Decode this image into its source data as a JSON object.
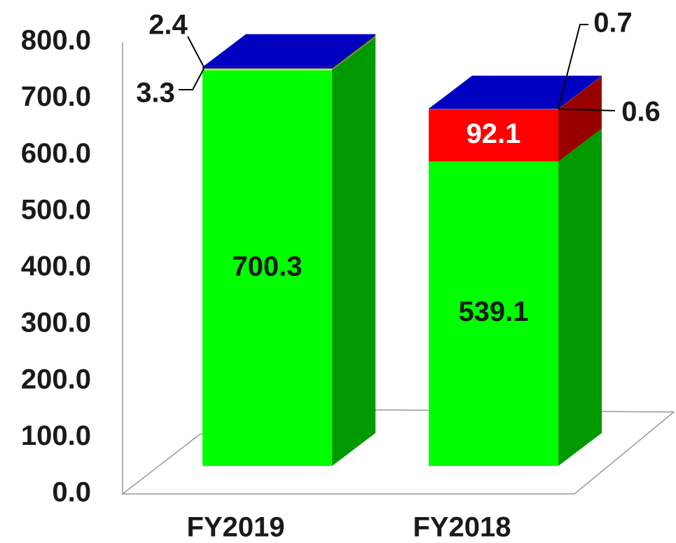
{
  "chart_data": {
    "type": "bar3d_stacked",
    "categories": [
      "FY2019",
      "FY2018"
    ],
    "series": [
      {
        "color": "#00ff00",
        "label_color": "#1a1a1a",
        "values": [
          700.3,
          539.1
        ]
      },
      {
        "color": "#ff0000",
        "label_color": "#ffffff",
        "values": [
          null,
          92.1
        ]
      },
      {
        "color": "#d8d860",
        "label_color": "#1a1a1a",
        "values": [
          3.3,
          0.6
        ]
      },
      {
        "color": "#0000c0",
        "label_color": "#1a1a1a",
        "values": [
          2.4,
          0.7
        ]
      }
    ],
    "ylim": [
      0,
      800
    ],
    "yticks": [
      {
        "value": 0,
        "label": "0.0"
      },
      {
        "value": 100,
        "label": "100.0"
      },
      {
        "value": 200,
        "label": "200.0"
      },
      {
        "value": 300,
        "label": "300.0"
      },
      {
        "value": 400,
        "label": "400.0"
      },
      {
        "value": 500,
        "label": "500.0"
      },
      {
        "value": 600,
        "label": "600.0"
      },
      {
        "value": 700,
        "label": "700.0"
      },
      {
        "value": 800,
        "label": "800.0"
      }
    ]
  }
}
